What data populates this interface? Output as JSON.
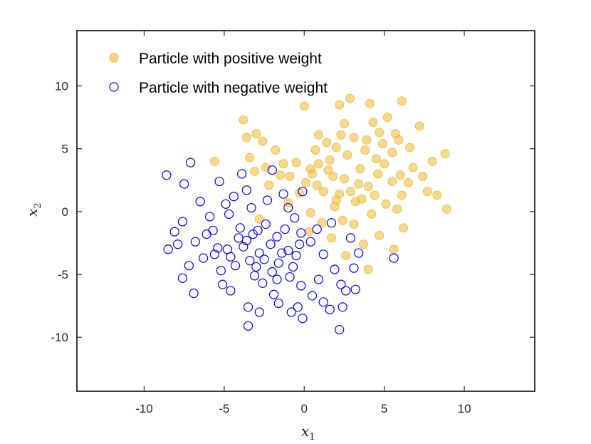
{
  "chart_data": {
    "type": "scatter",
    "xlabel": "x",
    "xlabel_sub": "1",
    "ylabel": "x",
    "ylabel_sub": "2",
    "xlim": [
      -14.2,
      14.4
    ],
    "ylim": [
      -14.3,
      14.4
    ],
    "xticks": [
      -10,
      -5,
      0,
      5,
      10
    ],
    "yticks": [
      -10,
      -5,
      0,
      5,
      10
    ],
    "grid": false,
    "legend_position": "top-left",
    "series": [
      {
        "name": "Particle with positive weight",
        "style": "filled",
        "color": "#EDB120",
        "points": [
          [
            2.86,
            9.0
          ],
          [
            4.1,
            8.6
          ],
          [
            2.2,
            8.5
          ],
          [
            0.0,
            8.4
          ],
          [
            5.2,
            7.5
          ],
          [
            6.1,
            8.8
          ],
          [
            -3.8,
            7.3
          ],
          [
            4.3,
            7.1
          ],
          [
            2.5,
            7.0
          ],
          [
            7.2,
            6.8
          ],
          [
            4.7,
            6.3
          ],
          [
            5.7,
            6.2
          ],
          [
            -3.6,
            5.9
          ],
          [
            -3.0,
            6.2
          ],
          [
            -2.6,
            5.6
          ],
          [
            0.9,
            6.1
          ],
          [
            3.1,
            5.9
          ],
          [
            5.9,
            5.7
          ],
          [
            2.0,
            5.1
          ],
          [
            -1.8,
            4.9
          ],
          [
            0.7,
            4.9
          ],
          [
            6.6,
            5.1
          ],
          [
            8.8,
            4.6
          ],
          [
            -5.6,
            4.0
          ],
          [
            -3.4,
            4.3
          ],
          [
            -1.3,
            3.8
          ],
          [
            0.4,
            3.4
          ],
          [
            4.5,
            4.2
          ],
          [
            8.0,
            4.0
          ],
          [
            -3.1,
            3.2
          ],
          [
            -0.9,
            2.8
          ],
          [
            1.8,
            2.8
          ],
          [
            6.0,
            2.9
          ],
          [
            7.4,
            2.8
          ],
          [
            -2.2,
            2.1
          ],
          [
            0.8,
            2.1
          ],
          [
            4.0,
            2.0
          ],
          [
            6.5,
            2.3
          ],
          [
            -0.3,
            1.5
          ],
          [
            2.9,
            1.6
          ],
          [
            7.7,
            1.6
          ],
          [
            -1.0,
            0.7
          ],
          [
            1.9,
            0.4
          ],
          [
            5.1,
            0.6
          ],
          [
            8.3,
            1.3
          ],
          [
            0.4,
            -0.1
          ],
          [
            4.2,
            -0.2
          ],
          [
            8.9,
            0.2
          ],
          [
            -2.8,
            -0.6
          ],
          [
            1.1,
            -0.9
          ],
          [
            3.1,
            -1.0
          ],
          [
            6.2,
            -1.3
          ],
          [
            0.3,
            -1.6
          ],
          [
            4.7,
            -1.9
          ],
          [
            1.7,
            -2.1
          ],
          [
            3.7,
            -2.6
          ],
          [
            5.6,
            -3.0
          ],
          [
            2.6,
            -3.5
          ],
          [
            4.0,
            -4.6
          ],
          [
            0.5,
            3.0
          ],
          [
            1.5,
            3.3
          ],
          [
            2.5,
            2.6
          ],
          [
            3.5,
            3.4
          ],
          [
            4.6,
            3.0
          ],
          [
            5.5,
            2.4
          ],
          [
            1.2,
            1.6
          ],
          [
            2.2,
            1.4
          ],
          [
            3.4,
            2.2
          ],
          [
            4.4,
            1.3
          ],
          [
            2.7,
            4.5
          ],
          [
            3.8,
            4.9
          ],
          [
            1.6,
            4.1
          ],
          [
            5.0,
            3.8
          ],
          [
            0.1,
            2.3
          ],
          [
            2.0,
            0.9
          ],
          [
            3.2,
            0.8
          ],
          [
            6.1,
            1.3
          ],
          [
            0.9,
            3.8
          ],
          [
            -1.5,
            2.9
          ],
          [
            -0.5,
            3.9
          ],
          [
            3.9,
            5.7
          ],
          [
            2.3,
            6.1
          ],
          [
            6.8,
            3.5
          ],
          [
            5.5,
            4.7
          ],
          [
            -2.4,
            3.5
          ],
          [
            1.4,
            5.5
          ],
          [
            4.9,
            5.4
          ],
          [
            3.6,
            1.0
          ],
          [
            2.4,
            -0.7
          ],
          [
            5.8,
            0.2
          ]
        ]
      },
      {
        "name": "Particle with negative weight",
        "style": "open",
        "color": "#0000FF",
        "points": [
          [
            -8.6,
            2.9
          ],
          [
            -7.1,
            3.9
          ],
          [
            -2.0,
            3.3
          ],
          [
            -7.5,
            2.2
          ],
          [
            -5.3,
            2.4
          ],
          [
            -3.9,
            3.0
          ],
          [
            -6.5,
            0.8
          ],
          [
            -4.4,
            1.2
          ],
          [
            -1.3,
            1.4
          ],
          [
            -0.1,
            1.6
          ],
          [
            -7.6,
            -0.8
          ],
          [
            -5.9,
            -0.4
          ],
          [
            -4.7,
            -0.2
          ],
          [
            -3.3,
            0.3
          ],
          [
            -8.1,
            -1.6
          ],
          [
            -6.1,
            -1.8
          ],
          [
            -4.0,
            -1.3
          ],
          [
            -2.4,
            -1.0
          ],
          [
            -0.6,
            -0.5
          ],
          [
            1.7,
            -0.9
          ],
          [
            -7.9,
            -2.6
          ],
          [
            -5.4,
            -2.9
          ],
          [
            -3.6,
            -2.3
          ],
          [
            -1.7,
            -2.0
          ],
          [
            0.4,
            -2.4
          ],
          [
            2.9,
            -2.1
          ],
          [
            -8.5,
            -3.0
          ],
          [
            -6.3,
            -3.7
          ],
          [
            -4.6,
            -3.6
          ],
          [
            -2.8,
            -3.3
          ],
          [
            -1.0,
            -3.1
          ],
          [
            1.2,
            -3.4
          ],
          [
            3.4,
            -3.3
          ],
          [
            5.6,
            -3.7
          ],
          [
            -7.2,
            -4.3
          ],
          [
            -5.2,
            -4.7
          ],
          [
            -3.0,
            -4.4
          ],
          [
            -0.7,
            -4.4
          ],
          [
            1.9,
            -4.6
          ],
          [
            3.1,
            -4.5
          ],
          [
            -7.6,
            -5.3
          ],
          [
            -5.1,
            -5.8
          ],
          [
            -2.6,
            -5.7
          ],
          [
            -0.2,
            -5.9
          ],
          [
            2.3,
            -5.8
          ],
          [
            3.2,
            -6.2
          ],
          [
            -6.9,
            -6.5
          ],
          [
            -4.6,
            -6.3
          ],
          [
            -1.9,
            -6.6
          ],
          [
            0.5,
            -6.7
          ],
          [
            2.6,
            -6.3
          ],
          [
            -3.5,
            -7.6
          ],
          [
            -1.6,
            -7.3
          ],
          [
            -0.4,
            -7.6
          ],
          [
            1.2,
            -7.2
          ],
          [
            2.4,
            -7.6
          ],
          [
            -2.8,
            -8.0
          ],
          [
            -0.8,
            -8.0
          ],
          [
            1.6,
            -7.8
          ],
          [
            -3.5,
            -9.1
          ],
          [
            2.2,
            -9.4
          ],
          [
            -0.1,
            -8.5
          ],
          [
            -3.2,
            -1.8
          ],
          [
            -2.1,
            -2.6
          ],
          [
            -1.2,
            -1.4
          ],
          [
            -0.3,
            -2.6
          ],
          [
            -4.8,
            -3.0
          ],
          [
            -3.8,
            -2.8
          ],
          [
            -2.5,
            -3.8
          ],
          [
            -1.6,
            -4.1
          ],
          [
            -0.5,
            -3.5
          ],
          [
            -4.3,
            -4.3
          ],
          [
            -3.1,
            -5.1
          ],
          [
            -1.7,
            -5.4
          ],
          [
            -5.7,
            -1.5
          ],
          [
            -2.3,
            0.9
          ],
          [
            -3.6,
            1.7
          ],
          [
            -1.0,
            0.3
          ],
          [
            -6.8,
            -2.4
          ],
          [
            -4.9,
            0.6
          ],
          [
            -2.9,
            -1.5
          ],
          [
            -0.2,
            -1.7
          ],
          [
            -1.4,
            -3.3
          ],
          [
            -2.0,
            -4.8
          ],
          [
            -3.4,
            -3.9
          ],
          [
            -4.1,
            -2.1
          ],
          [
            0.8,
            -1.4
          ],
          [
            -5.6,
            -3.4
          ],
          [
            -0.9,
            -5.2
          ],
          [
            0.9,
            -5.4
          ]
        ]
      }
    ]
  }
}
